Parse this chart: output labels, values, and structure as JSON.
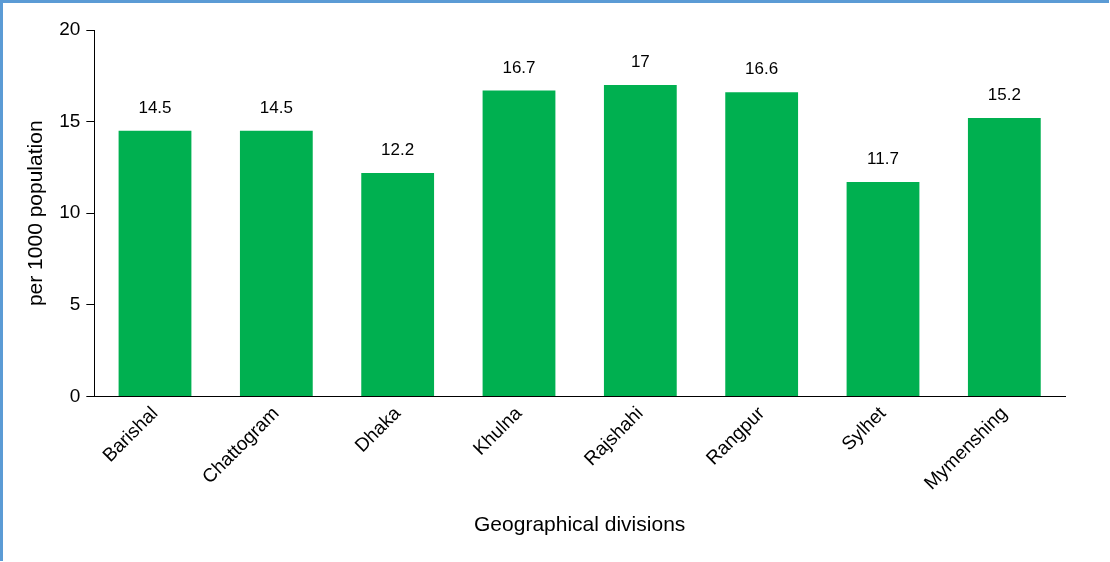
{
  "chart_data": {
    "type": "bar",
    "xlabel": "Geographical divisions",
    "ylabel": "per 1000 population",
    "categories": [
      "Barishal",
      "Chattogram",
      "Dhaka",
      "Khulna",
      "Rajshahi",
      "Rangpur",
      "Sylhet",
      "Mymenshing"
    ],
    "values": [
      14.5,
      14.5,
      12.2,
      16.7,
      17,
      16.6,
      11.7,
      15.2
    ],
    "color": "#00b050",
    "ylim": [
      0,
      20
    ],
    "yticks": [
      0,
      5,
      10,
      15,
      20
    ],
    "grid": false,
    "legend": false,
    "data_labels": true
  }
}
